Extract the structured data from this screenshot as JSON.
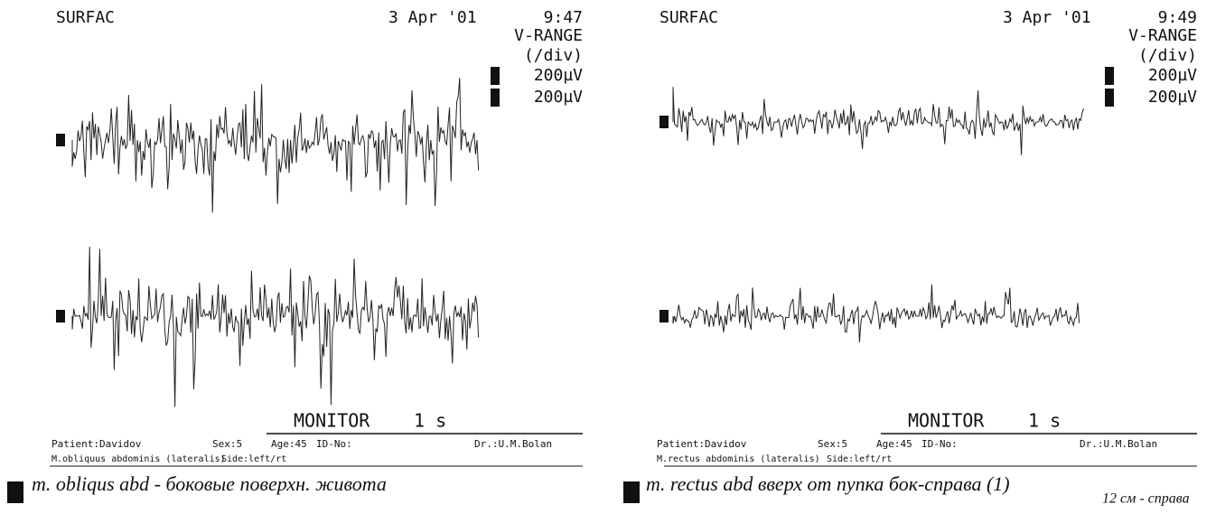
{
  "panels": [
    {
      "brand": "SURFAC",
      "date": "3 Apr '01",
      "time": "9:47",
      "range_title": "V-RANGE",
      "range_unit": "(/div)",
      "channels": [
        "200µV",
        "200µV"
      ],
      "mode": "MONITOR",
      "sweep": "1 s",
      "info": [
        "Patient:Davidov",
        "Sex:5",
        "Age:45",
        "ID-No:",
        "Dr.:U.M.Bolan"
      ],
      "muscle": [
        "M.obliquus abdominis (lateralis)",
        "Side:left/rt"
      ],
      "notes": [
        "m. obliqus abd - боковые поверхн. живота"
      ]
    },
    {
      "brand": "SURFAC",
      "date": "3 Apr '01",
      "time": "9:49",
      "range_title": "V-RANGE",
      "range_unit": "(/div)",
      "channels": [
        "200µV",
        "200µV"
      ],
      "mode": "MONITOR",
      "sweep": "1 s",
      "info": [
        "Patient:Davidov",
        "Sex:5",
        "Age:45",
        "ID-No:",
        "Dr.:U.M.Bolan"
      ],
      "muscle": [
        "M.rectus abdominis (lateralis)",
        "Side:left/rt"
      ],
      "notes": [
        "m. rectus abd вверх от пупка бок-справа (1)",
        "12 см - справа"
      ]
    }
  ]
}
